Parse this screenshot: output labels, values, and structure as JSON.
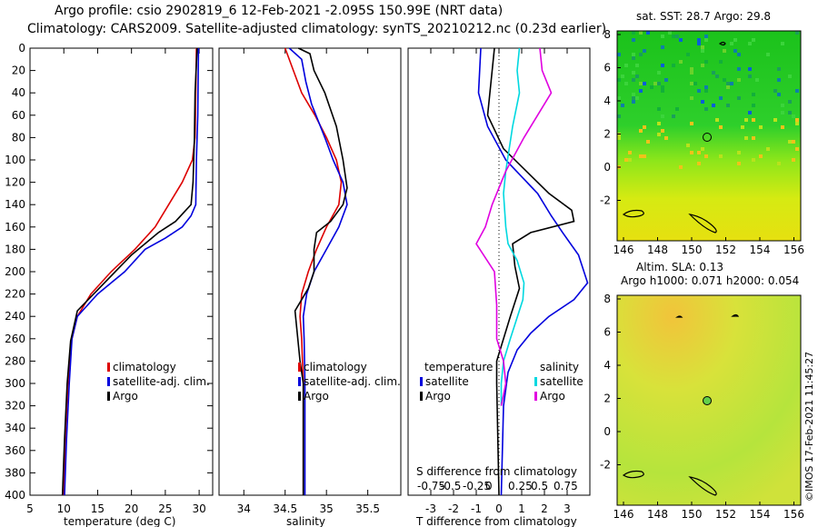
{
  "header": {
    "title_line1": "Argo profile: csio 2902819_6 12-Feb-2021 -2.095S 150.99E (NRT data)",
    "title_line2": "Climatology: CARS2009. Satellite-adjusted climatology: synTS_20210212.nc (0.23d earlier)"
  },
  "footer": {
    "copyright": "©IMOS 17-Feb-2021 11:45:27"
  },
  "colors": {
    "climatology": "#dd0000",
    "satellite": "#0000dd",
    "argo": "#000000",
    "sal_satellite": "#00d8e0",
    "sal_argo": "#e000e0"
  },
  "chart_data": [
    {
      "type": "line",
      "id": "temperature",
      "xlabel": "temperature (deg C)",
      "ylabel": "",
      "xlim": [
        5,
        32
      ],
      "ylim": [
        400,
        0
      ],
      "xticks": [
        5,
        10,
        15,
        20,
        25,
        30
      ],
      "yticks": [
        0,
        20,
        40,
        60,
        80,
        100,
        120,
        140,
        160,
        180,
        200,
        220,
        240,
        260,
        280,
        300,
        320,
        340,
        360,
        380,
        400
      ],
      "legend": [
        "climatology",
        "satellite-adj. clim.",
        "Argo"
      ],
      "series": [
        {
          "name": "climatology",
          "color": "#dd0000",
          "points": [
            [
              29.6,
              0
            ],
            [
              29.5,
              40
            ],
            [
              29.4,
              80
            ],
            [
              29,
              100
            ],
            [
              27.5,
              120
            ],
            [
              25.5,
              140
            ],
            [
              23.5,
              160
            ],
            [
              20.5,
              180
            ],
            [
              17,
              200
            ],
            [
              14,
              220
            ],
            [
              12,
              240
            ],
            [
              11,
              265
            ],
            [
              10.6,
              300
            ],
            [
              10.2,
              350
            ],
            [
              10,
              400
            ]
          ]
        },
        {
          "name": "satellite-adj. clim.",
          "color": "#0000dd",
          "points": [
            [
              29.9,
              0
            ],
            [
              29.8,
              60
            ],
            [
              29.6,
              100
            ],
            [
              29.5,
              140
            ],
            [
              28.8,
              150
            ],
            [
              27.5,
              160
            ],
            [
              25,
              170
            ],
            [
              22,
              180
            ],
            [
              19,
              200
            ],
            [
              15,
              220
            ],
            [
              12,
              240
            ],
            [
              11.2,
              260
            ],
            [
              10.8,
              300
            ],
            [
              10.4,
              350
            ],
            [
              10.1,
              400
            ]
          ]
        },
        {
          "name": "Argo",
          "color": "#000000",
          "points": [
            [
              29.7,
              0
            ],
            [
              29.4,
              40
            ],
            [
              29.3,
              80
            ],
            [
              29.1,
              120
            ],
            [
              28.8,
              140
            ],
            [
              26.5,
              155
            ],
            [
              24,
              165
            ],
            [
              20,
              185
            ],
            [
              16,
              210
            ],
            [
              12,
              235
            ],
            [
              11,
              262
            ],
            [
              10.5,
              300
            ],
            [
              10.1,
              350
            ],
            [
              9.8,
              400
            ]
          ]
        }
      ]
    },
    {
      "type": "line",
      "id": "salinity",
      "xlabel": "salinity",
      "ylabel": "",
      "xlim": [
        33.7,
        35.9
      ],
      "ylim": [
        400,
        0
      ],
      "xticks": [
        34,
        34.5,
        35,
        35.5
      ],
      "legend": [
        "climatology",
        "satellite-adj. clim.",
        "Argo"
      ],
      "series": [
        {
          "name": "climatology",
          "color": "#dd0000",
          "points": [
            [
              34.5,
              0
            ],
            [
              34.6,
              20
            ],
            [
              34.7,
              40
            ],
            [
              34.86,
              60
            ],
            [
              35.0,
              80
            ],
            [
              35.12,
              100
            ],
            [
              35.18,
              120
            ],
            [
              35.15,
              140
            ],
            [
              35.0,
              160
            ],
            [
              34.88,
              180
            ],
            [
              34.78,
              200
            ],
            [
              34.7,
              220
            ],
            [
              34.68,
              240
            ],
            [
              34.7,
              260
            ],
            [
              34.72,
              300
            ],
            [
              34.72,
              400
            ]
          ]
        },
        {
          "name": "satellite-adj. clim.",
          "color": "#0000dd",
          "points": [
            [
              34.55,
              0
            ],
            [
              34.7,
              10
            ],
            [
              34.75,
              30
            ],
            [
              34.82,
              50
            ],
            [
              34.98,
              80
            ],
            [
              35.08,
              100
            ],
            [
              35.2,
              120
            ],
            [
              35.25,
              140
            ],
            [
              35.15,
              160
            ],
            [
              35.0,
              180
            ],
            [
              34.85,
              200
            ],
            [
              34.76,
              220
            ],
            [
              34.72,
              240
            ],
            [
              34.73,
              260
            ],
            [
              34.74,
              300
            ],
            [
              34.74,
              400
            ]
          ]
        },
        {
          "name": "Argo",
          "color": "#000000",
          "points": [
            [
              34.66,
              0
            ],
            [
              34.8,
              5
            ],
            [
              34.85,
              20
            ],
            [
              34.98,
              40
            ],
            [
              35.12,
              70
            ],
            [
              35.2,
              100
            ],
            [
              35.25,
              125
            ],
            [
              35.2,
              140
            ],
            [
              35.05,
              155
            ],
            [
              34.88,
              165
            ],
            [
              34.85,
              180
            ],
            [
              34.85,
              200
            ],
            [
              34.78,
              215
            ],
            [
              34.62,
              235
            ],
            [
              34.68,
              280
            ],
            [
              34.72,
              300
            ],
            [
              34.72,
              400
            ]
          ]
        }
      ]
    },
    {
      "type": "line",
      "id": "difference",
      "xlabel": "T difference from climatology",
      "ylabel": "",
      "xlim": [
        -4,
        4
      ],
      "ylim": [
        400,
        0
      ],
      "xticks": [
        -3,
        -2,
        -1,
        0,
        1,
        2,
        3
      ],
      "title_inside": "S difference from climatology",
      "s_ticks": [
        "-0.75",
        "-0.5",
        "-0.25",
        "0",
        "0.25",
        "0.5",
        "0.75"
      ],
      "legend_left_title": "temperature",
      "legend_right_title": "salinity",
      "legend_left": [
        "satellite",
        "Argo"
      ],
      "legend_right": [
        "satellite",
        "Argo"
      ],
      "series": [
        {
          "name": "temperature satellite",
          "color": "#0000dd",
          "points": [
            [
              -0.8,
              0
            ],
            [
              -0.9,
              40
            ],
            [
              -0.5,
              70
            ],
            [
              0.3,
              100
            ],
            [
              1.7,
              130
            ],
            [
              2.3,
              150
            ],
            [
              2.8,
              165
            ],
            [
              3.5,
              185
            ],
            [
              3.9,
              210
            ],
            [
              3.3,
              225
            ],
            [
              2.2,
              240
            ],
            [
              1.4,
              255
            ],
            [
              0.8,
              270
            ],
            [
              0.4,
              290
            ],
            [
              0.2,
              320
            ],
            [
              0.1,
              400
            ]
          ]
        },
        {
          "name": "temperature Argo",
          "color": "#000000",
          "points": [
            [
              -0.2,
              0
            ],
            [
              -0.4,
              40
            ],
            [
              -0.5,
              60
            ],
            [
              0.2,
              90
            ],
            [
              1.2,
              110
            ],
            [
              2.2,
              130
            ],
            [
              3.2,
              145
            ],
            [
              3.3,
              155
            ],
            [
              1.4,
              165
            ],
            [
              0.6,
              175
            ],
            [
              0.7,
              195
            ],
            [
              0.9,
              215
            ],
            [
              0.5,
              240
            ],
            [
              -0.1,
              280
            ],
            [
              -0.1,
              300
            ],
            [
              0,
              400
            ]
          ]
        },
        {
          "name": "salinity satellite",
          "color": "#00d8e0",
          "points": [
            [
              0.9,
              0
            ],
            [
              0.8,
              20
            ],
            [
              0.9,
              40
            ],
            [
              0.6,
              70
            ],
            [
              0.3,
              110
            ],
            [
              0.2,
              130
            ],
            [
              0.3,
              160
            ],
            [
              0.4,
              175
            ],
            [
              0.8,
              190
            ],
            [
              1.1,
              210
            ],
            [
              1.05,
              225
            ],
            [
              0.5,
              260
            ],
            [
              0.2,
              280
            ],
            [
              0.1,
              300
            ],
            [
              0.1,
              320
            ]
          ]
        },
        {
          "name": "salinity Argo",
          "color": "#e000e0",
          "points": [
            [
              1.8,
              0
            ],
            [
              1.9,
              20
            ],
            [
              2.3,
              40
            ],
            [
              1.7,
              60
            ],
            [
              1.1,
              80
            ],
            [
              0.3,
              110
            ],
            [
              -0.3,
              140
            ],
            [
              -0.6,
              160
            ],
            [
              -1,
              175
            ],
            [
              -0.2,
              200
            ],
            [
              -0.1,
              230
            ],
            [
              -0.1,
              260
            ],
            [
              0.2,
              280
            ],
            [
              0.3,
              300
            ],
            [
              0.1,
              320
            ]
          ]
        }
      ]
    },
    {
      "type": "heatmap",
      "id": "sst_map",
      "title": "sat. SST: 28.7 Argo: 29.8",
      "xticks": [
        146,
        148,
        150,
        152,
        154,
        156
      ],
      "yticks": [
        8,
        6,
        4,
        2,
        0,
        -2
      ],
      "marker_lon": 150.99,
      "marker_lat": -2.095
    },
    {
      "type": "heatmap",
      "id": "sla_map",
      "title_line1": "Altim. SLA: 0.13",
      "title_line2": "Argo h1000: 0.071 h2000: 0.054",
      "xticks": [
        146,
        148,
        150,
        152,
        154,
        156
      ],
      "yticks": [
        8,
        6,
        4,
        2,
        0,
        -2
      ]
    }
  ]
}
